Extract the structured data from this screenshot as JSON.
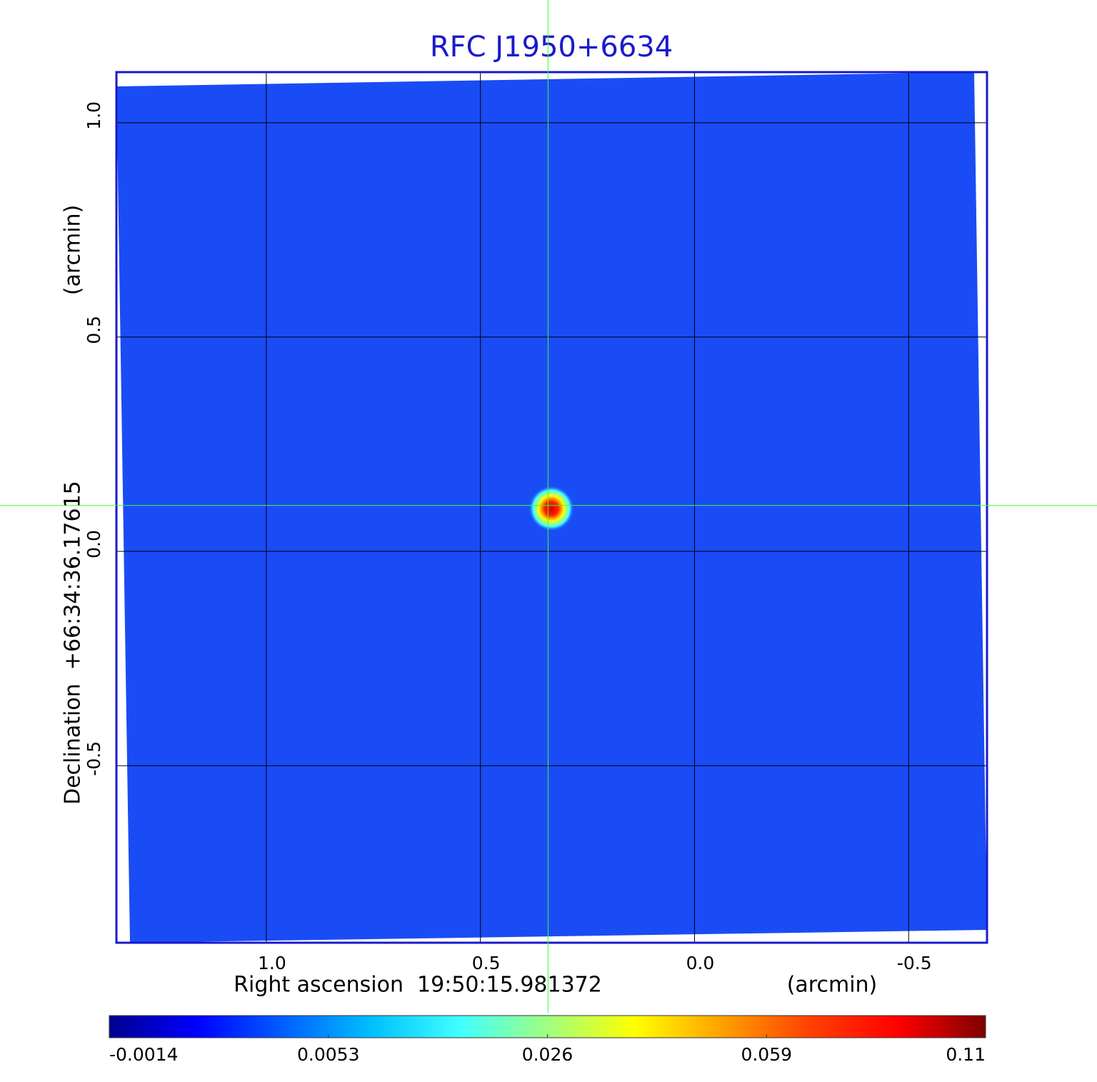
{
  "chart_data": {
    "type": "image",
    "title": "RFC J1950+6634",
    "x_label": "Right ascension  19:50:15.981372",
    "x_unit": "(arcmin)",
    "y_label": "Declination  +66:34:36.17615",
    "y_unit": "(arcmin)",
    "xlim": [
      1.35,
      -0.683
    ],
    "ylim": [
      -0.913,
      1.118
    ],
    "xticks": [
      {
        "value": 1,
        "label": "1.0"
      },
      0.5,
      {
        "value": 0,
        "label": "0.0"
      },
      -0.5
    ],
    "yticks": [
      {
        "value": -0.5,
        "label": "-0.5"
      },
      {
        "value": 0,
        "label": "0.0"
      },
      0.5,
      {
        "value": 1,
        "label": "1.0"
      }
    ],
    "grid": true,
    "crosshair": [
      0.342,
      0.107
    ],
    "colorbar": {
      "ticks": [
        "-0.0014",
        "0.0053",
        "0.026",
        "0.059",
        "0.11"
      ],
      "colors": [
        "#00008f",
        "#0000ff",
        "#0060ff",
        "#00c0ff",
        "#40ffff",
        "#a0ff80",
        "#ffff00",
        "#ffa000",
        "#ff4000",
        "#ff0000",
        "#800000"
      ]
    }
  }
}
